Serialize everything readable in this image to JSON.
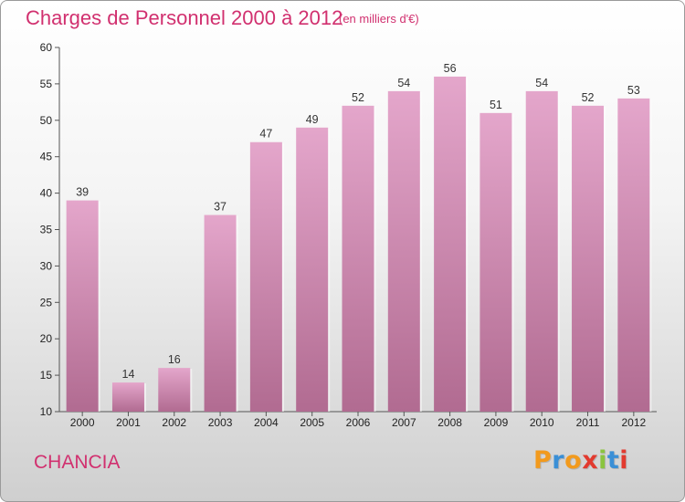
{
  "header": {
    "title": "Charges de Personnel 2000 à 2012",
    "subtitle": "(en milliers d'€)"
  },
  "footer": {
    "commune": "CHANCIA",
    "logo_letters": [
      "P",
      "r",
      "o",
      "x",
      "i",
      "t",
      "i"
    ],
    "logo_colors": [
      "#f29a1d",
      "#3a8fd6",
      "#f29a1d",
      "#e23a2f",
      "#8ac43f",
      "#3a8fd6",
      "#e23a2f"
    ]
  },
  "chart_data": {
    "type": "bar",
    "categories": [
      "2000",
      "2001",
      "2002",
      "2003",
      "2004",
      "2005",
      "2006",
      "2007",
      "2008",
      "2009",
      "2010",
      "2011",
      "2012"
    ],
    "values": [
      39,
      14,
      16,
      37,
      47,
      49,
      52,
      54,
      56,
      51,
      54,
      52,
      53
    ],
    "ylim": [
      10,
      60
    ],
    "yticks": [
      10,
      15,
      20,
      25,
      30,
      35,
      40,
      45,
      50,
      55,
      60
    ],
    "grid": false,
    "bar_color_top": "#e4a6cb",
    "bar_color_bottom": "#b16b91",
    "title_color": "#d1306f"
  }
}
